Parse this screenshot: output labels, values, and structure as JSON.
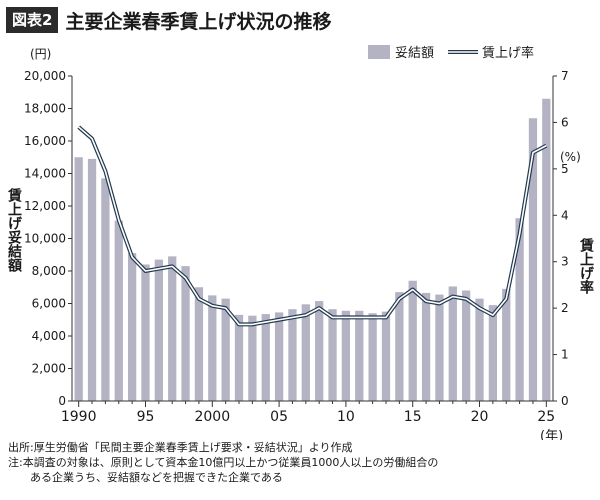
{
  "header": {
    "badge": "図表2",
    "title": "主要企業春季賃上げ状況の推移"
  },
  "notes": {
    "source": "出所:厚生労働省「民間主要企業春季賃上げ要求・妥結状況」より作成",
    "note_line1": "注:本調査の対象は、原則として資本金10億円以上かつ従業員1000人以上の労働組合の",
    "note_line2": "ある企業うち、妥結額などを把握できた企業である"
  },
  "colors": {
    "bar": "#b3b3c4",
    "line_outer": "#22394f",
    "line_inner": "#ffffff",
    "axis": "#333333"
  },
  "chart_data": {
    "type": "bar",
    "x": [
      1990,
      1991,
      1992,
      1993,
      1994,
      1995,
      1996,
      1997,
      1998,
      1999,
      2000,
      2001,
      2002,
      2003,
      2004,
      2005,
      2006,
      2007,
      2008,
      2009,
      2010,
      2011,
      2012,
      2013,
      2014,
      2015,
      2016,
      2017,
      2018,
      2019,
      2020,
      2021,
      2022,
      2023,
      2024,
      2025
    ],
    "x_tick_labels": [
      "1990",
      "95",
      "2000",
      "05",
      "10",
      "15",
      "20",
      "25"
    ],
    "x_tick_years": [
      1990,
      1995,
      2000,
      2005,
      2010,
      2015,
      2020,
      2025
    ],
    "x_unit": "(年)",
    "series": [
      {
        "name": "妥結額",
        "axis": "left",
        "values": [
          15000,
          14900,
          13700,
          11100,
          9100,
          8400,
          8700,
          8900,
          8300,
          7000,
          6500,
          6300,
          5300,
          5250,
          5350,
          5450,
          5650,
          5950,
          6150,
          5650,
          5550,
          5550,
          5400,
          5500,
          6700,
          7400,
          6650,
          6550,
          7050,
          6800,
          6300,
          5900,
          6900,
          11250,
          17400,
          18600
        ]
      },
      {
        "name": "賃上げ率",
        "axis": "right",
        "values": [
          5.9,
          5.65,
          4.95,
          3.9,
          3.1,
          2.8,
          2.85,
          2.9,
          2.65,
          2.2,
          2.05,
          2.0,
          1.65,
          1.65,
          1.7,
          1.75,
          1.8,
          1.85,
          2.0,
          1.8,
          1.8,
          1.8,
          1.8,
          1.8,
          2.2,
          2.4,
          2.15,
          2.1,
          2.25,
          2.2,
          2.0,
          1.85,
          2.2,
          3.6,
          5.35,
          5.5
        ]
      }
    ],
    "yleft_ticks": [
      "0",
      "2,000",
      "4,000",
      "6,000",
      "8,000",
      "10,000",
      "12,000",
      "14,000",
      "16,000",
      "18,000",
      "20,000"
    ],
    "yleft_unit": "(円)",
    "yleft_label": "賃上げ妥結額",
    "yleft_lim": [
      0,
      20000
    ],
    "yright_ticks": [
      "0",
      "1",
      "2",
      "3",
      "4",
      "5",
      "6",
      "7"
    ],
    "yright_unit": "(%)",
    "yright_label": "賃上げ率",
    "yright_lim": [
      0,
      7
    ],
    "legend": [
      "妥結額",
      "賃上げ率"
    ],
    "legend_position": "top-right",
    "grid": false
  }
}
